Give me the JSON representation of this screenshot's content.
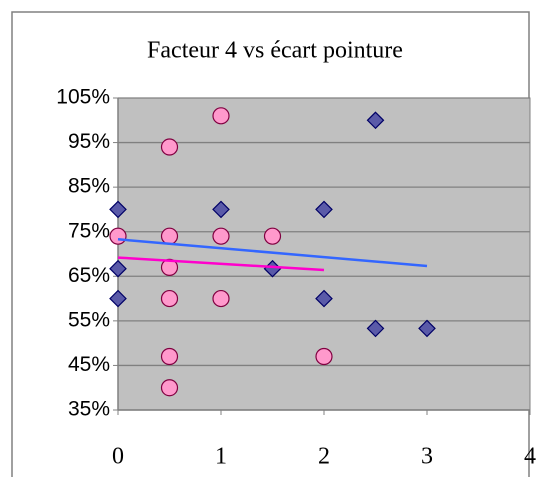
{
  "chart_data": {
    "type": "scatter",
    "title": "Facteur 4 vs écart pointure",
    "xlim": [
      0,
      4
    ],
    "xticks": [
      0,
      1,
      2,
      3,
      4
    ],
    "ylim": [
      35,
      105
    ],
    "yticks": [
      {
        "value": 35,
        "label": "35%"
      },
      {
        "value": 45,
        "label": "45%"
      },
      {
        "value": 55,
        "label": "55%"
      },
      {
        "value": 65,
        "label": "65%"
      },
      {
        "value": 75,
        "label": "75%"
      },
      {
        "value": 85,
        "label": "85%"
      },
      {
        "value": 95,
        "label": "95%"
      },
      {
        "value": 105,
        "label": "105%"
      }
    ],
    "grid": true,
    "series": [
      {
        "marker": "diamond",
        "color": "#5a5aa8",
        "x": [
          0,
          0,
          0,
          1,
          1.5,
          2,
          2,
          2.5,
          2.5,
          3
        ],
        "values": [
          80,
          66.7,
          60,
          80,
          66.7,
          80,
          60,
          100,
          53.3,
          53.3
        ]
      },
      {
        "marker": "circle",
        "color": "#ff99cc",
        "x": [
          0,
          0.5,
          0.5,
          0.5,
          0.5,
          0.5,
          0.5,
          1,
          1,
          1,
          1.5,
          2
        ],
        "values": [
          74,
          94,
          74,
          67,
          60,
          47,
          40,
          101,
          74,
          60,
          74,
          47
        ]
      }
    ],
    "trendlines": [
      {
        "color": "#3366ff",
        "x": [
          0,
          3
        ],
        "values": [
          73.3,
          67.3
        ]
      },
      {
        "color": "#ff00cc",
        "x": [
          0,
          2
        ],
        "values": [
          69.2,
          66.4
        ]
      }
    ]
  }
}
